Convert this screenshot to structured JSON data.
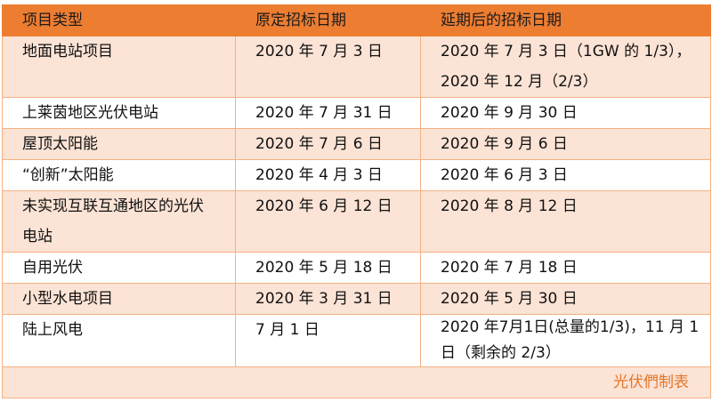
{
  "headers": [
    "项目类型",
    "原定招标日期",
    "延期后的招标日期"
  ],
  "rows": [
    {
      "type": "地面电站项目",
      "original": "2020 年 7 月 3 日",
      "delayed": "2020 年 7 月 3 日（1GW 的 1/3），2020 年 12 月（2/3）"
    },
    {
      "type": "上莱茵地区光伏电站",
      "original": "2020 年 7 月 31 日",
      "delayed": "2020 年 9 月 30 日"
    },
    {
      "type": "屋顶太阳能",
      "original": "2020 年 7 月 6 日",
      "delayed": "2020 年 9 月 6 日"
    },
    {
      "type": "“创新”太阳能",
      "original": "2020 年 4 月 3 日",
      "delayed": "2020 年 6 月 3 日"
    },
    {
      "type": "未实现互联互通地区的光伏电站",
      "original": "2020 年 6 月 12 日",
      "delayed": "2020 年 8 月 12 日"
    },
    {
      "type": "自用光伏",
      "original": "2020 年 5 月 18 日",
      "delayed": "2020 年 7 月 18 日"
    },
    {
      "type": "小型水电项目",
      "original": "2020 年 3 月 31 日",
      "delayed": "2020 年 5 月 30 日"
    },
    {
      "type": "陆上风电",
      "original": "7 月 1 日",
      "delayed": "2020 年7月1日(总量的1/3)，11 月 1 日（剩余的 2/3）"
    }
  ],
  "footer": "光伏們制表",
  "colors": {
    "header": "#ed7d31",
    "band": "#fbe3d5",
    "footer_text": "#e3772a"
  }
}
